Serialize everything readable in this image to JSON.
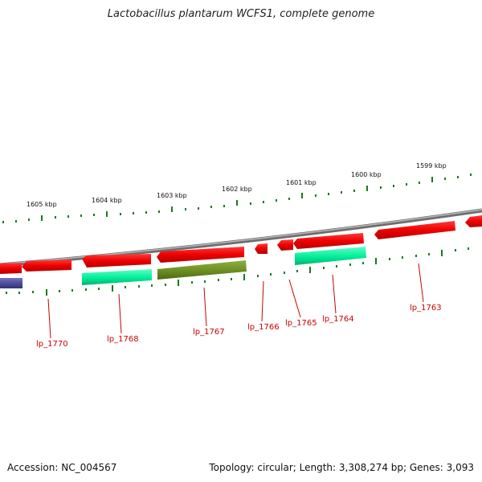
{
  "title": "Lactobacillus plantarum WCFS1, complete genome",
  "footer": {
    "accession": "Accession: NC_004567",
    "summary": "Topology: circular; Length: 3,308,274 bp; Genes: 3,093"
  },
  "colors": {
    "backbone": "#888888",
    "ruler_tick": "#1a7a1a",
    "gene_red": "#ee0000",
    "gene_teal": "#00ee99",
    "gene_olive": "#6b8e23",
    "gene_purple": "#4b4b9a",
    "label": "#cc0000"
  },
  "kbp_labels": [
    "1605 kbp",
    "1604 kbp",
    "1603 kbp",
    "1602 kbp",
    "1601 kbp",
    "1600 kbp",
    "1599 kbp"
  ],
  "gene_labels": [
    "lp_1770",
    "lp_1768",
    "lp_1767",
    "lp_1766",
    "lp_1765",
    "lp_1764",
    "lp_1763"
  ]
}
